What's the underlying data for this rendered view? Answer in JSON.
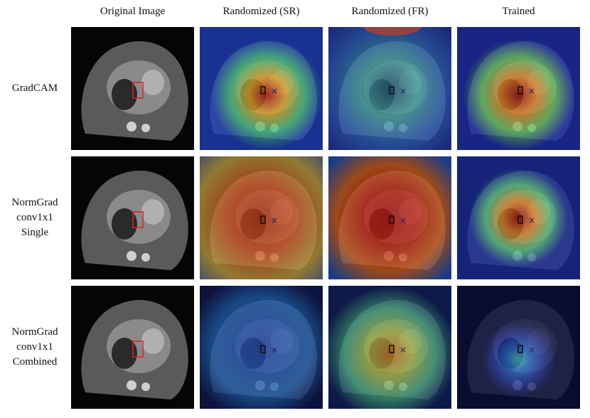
{
  "columns": [
    "Original Image",
    "Randomized (SR)",
    "Randomized (FR)",
    "Trained"
  ],
  "rows": [
    {
      "label": [
        "GradCAM"
      ]
    },
    {
      "label": [
        "NormGrad",
        "conv1x1",
        "Single"
      ]
    },
    {
      "label": [
        "NormGrad",
        "conv1x1",
        "Combined"
      ]
    }
  ]
}
